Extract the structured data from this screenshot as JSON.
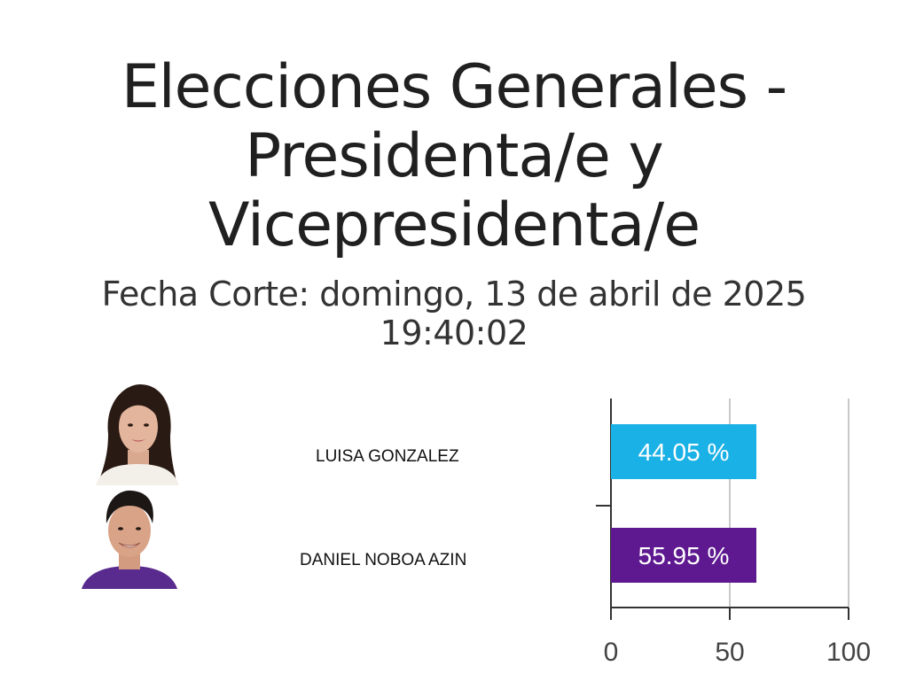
{
  "title": {
    "line1": "Elecciones Generales -",
    "line2": "Presidenta/e y",
    "line3": "Vicepresidenta/e"
  },
  "subtitle": {
    "line1": "Fecha Corte: domingo, 13 de abril de 2025",
    "line2": "19:40:02"
  },
  "candidates": [
    {
      "name": "LUISA GONZALEZ",
      "photo": "candidate-photo-luisa-gonzalez"
    },
    {
      "name": "DANIEL NOBOA AZIN",
      "photo": "candidate-photo-daniel-noboa"
    }
  ],
  "chart_data": {
    "type": "bar",
    "orientation": "horizontal",
    "categories": [
      "LUISA GONZALEZ",
      "DANIEL NOBOA AZIN"
    ],
    "values": [
      44.05,
      55.95
    ],
    "value_labels": [
      "44.05 %",
      "55.95 %"
    ],
    "colors": [
      "#1ab1e6",
      "#5e1990"
    ],
    "xlim": [
      0,
      100
    ],
    "xticks": [
      "0",
      "50",
      "100"
    ],
    "grid": true,
    "legend": "none"
  }
}
